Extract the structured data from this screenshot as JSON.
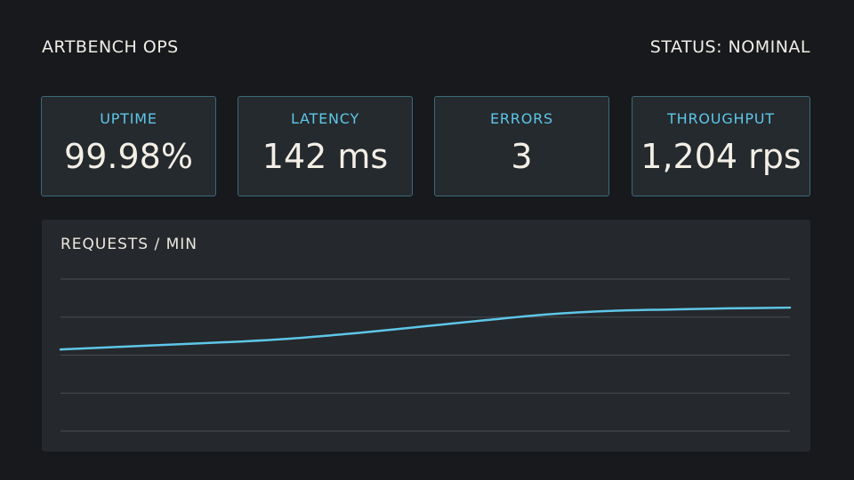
{
  "header": {
    "app_title": "ARTBENCH OPS",
    "status": "STATUS: NOMINAL"
  },
  "cards": [
    {
      "label": "UPTIME",
      "value": "99.98%"
    },
    {
      "label": "LATENCY",
      "value": "142 ms"
    },
    {
      "label": "ERRORS",
      "value": "3"
    },
    {
      "label": "THROUGHPUT",
      "value": "1,204 rps"
    }
  ],
  "colors": {
    "accent": "#5ec6e8",
    "background": "#17191c",
    "panel": "#25282c"
  },
  "chart_data": {
    "type": "line",
    "title": "REQUESTS / MIN",
    "grid": true,
    "legend": "none",
    "ylim": [
      0,
      4
    ],
    "x": [
      0,
      1,
      2,
      3,
      4,
      5,
      6,
      7,
      8,
      9,
      10,
      11,
      12
    ],
    "series": [
      {
        "values": [
          2.15,
          2.22,
          2.29,
          2.36,
          2.46,
          2.6,
          2.76,
          2.92,
          3.07,
          3.16,
          3.2,
          3.23,
          3.25
        ]
      }
    ]
  }
}
